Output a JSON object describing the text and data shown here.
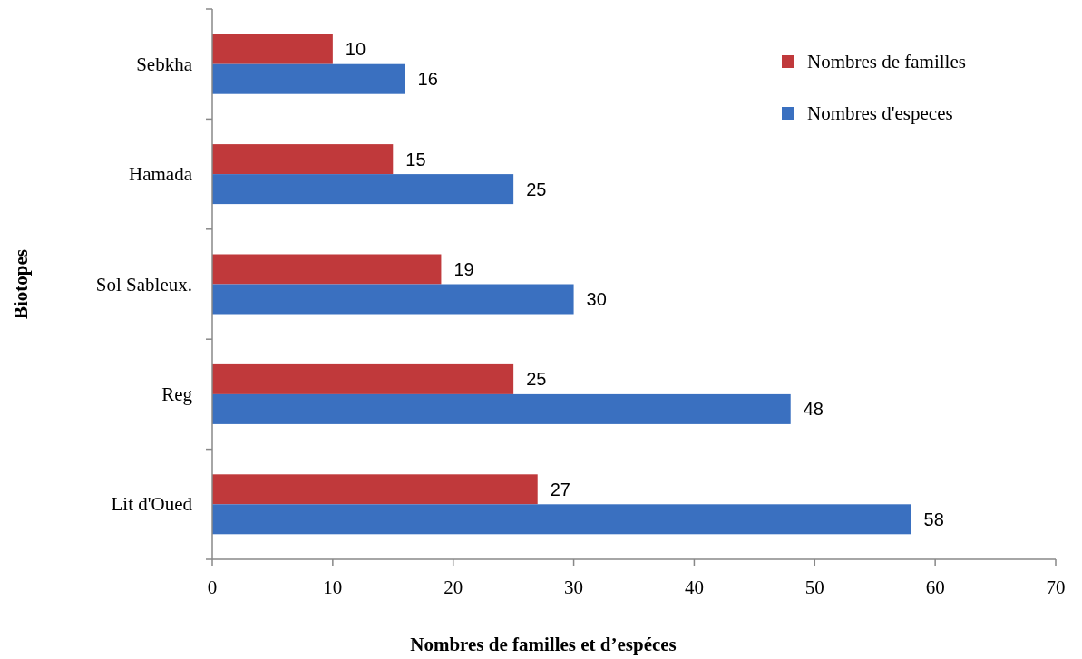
{
  "chart_data": {
    "type": "bar",
    "orientation": "horizontal",
    "xlabel": "Nombres de familles et d’espéces",
    "ylabel": "Biotopes",
    "categories": [
      "Sebkha",
      "Hamada",
      "Sol Sableux.",
      "Reg",
      "Lit d'Oued"
    ],
    "series": [
      {
        "name": "Nombres de familles",
        "color": "#c0393b",
        "values": [
          10,
          15,
          19,
          25,
          27
        ]
      },
      {
        "name": "Nombres d'especes",
        "color": "#3a70c0",
        "values": [
          16,
          25,
          30,
          48,
          58
        ]
      }
    ],
    "xlim": [
      0,
      70
    ],
    "xticks": [
      0,
      10,
      20,
      30,
      40,
      50,
      60,
      70
    ],
    "grid": false,
    "legend": "top right",
    "data_labels": true
  }
}
